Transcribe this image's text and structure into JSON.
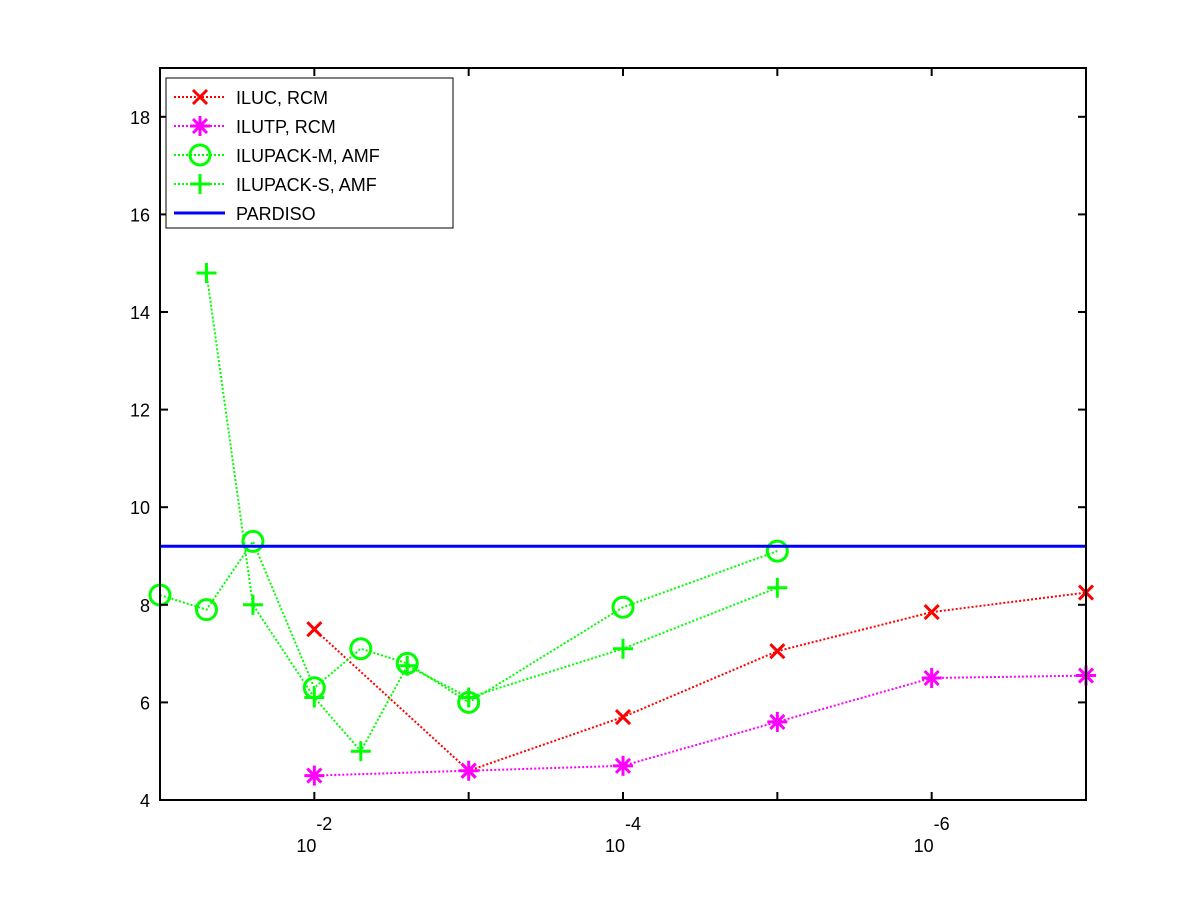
{
  "chart_data": {
    "type": "line",
    "title": "",
    "xlabel": "",
    "ylabel": "",
    "x_scale": "log",
    "x_direction": "decreasing",
    "xlim": [
      0.1,
      1e-07
    ],
    "ylim": [
      4,
      19
    ],
    "grid": false,
    "legend_position": "top-left",
    "x_ticks": [
      {
        "value": 0.01,
        "base": "10",
        "exponent": "-2"
      },
      {
        "value": 0.0001,
        "base": "10",
        "exponent": "-4"
      },
      {
        "value": 1e-06,
        "base": "10",
        "exponent": "-6"
      }
    ],
    "y_ticks": [
      {
        "value": 4,
        "label": "4"
      },
      {
        "value": 6,
        "label": "6"
      },
      {
        "value": 8,
        "label": "8"
      },
      {
        "value": 10,
        "label": "10"
      },
      {
        "value": 12,
        "label": "12"
      },
      {
        "value": 14,
        "label": "14"
      },
      {
        "value": 16,
        "label": "16"
      },
      {
        "value": 18,
        "label": "18"
      }
    ],
    "series": [
      {
        "name": "ILUC, RCM",
        "color": "#ff0000",
        "marker": "x",
        "line_style": "dotted",
        "x": [
          0.01,
          0.001,
          0.0001,
          1e-05,
          1e-06,
          1e-07
        ],
        "y": [
          7.5,
          4.6,
          5.7,
          7.05,
          7.85,
          8.25
        ]
      },
      {
        "name": "ILUTP, RCM",
        "color": "#ff00ff",
        "marker": "asterisk",
        "line_style": "dotted",
        "x": [
          0.01,
          0.001,
          0.0001,
          1e-05,
          1e-06,
          1e-07
        ],
        "y": [
          4.5,
          4.6,
          4.7,
          5.6,
          6.5,
          6.55
        ]
      },
      {
        "name": "ILUPACK-M, AMF",
        "color": "#00ff00",
        "marker": "circle",
        "line_style": "dotted",
        "x": [
          0.1,
          0.05,
          0.025,
          0.01,
          0.005,
          0.0025,
          0.001,
          0.0001,
          1e-05
        ],
        "y": [
          8.2,
          7.9,
          9.3,
          6.3,
          7.1,
          6.8,
          6.0,
          7.95,
          9.1
        ]
      },
      {
        "name": "ILUPACK-S, AMF",
        "color": "#00ff00",
        "marker": "plus",
        "line_style": "dotted",
        "x": [
          0.05,
          0.025,
          0.01,
          0.005,
          0.0025,
          0.001,
          0.0001,
          1e-05
        ],
        "y": [
          14.8,
          8.0,
          6.1,
          5.0,
          6.75,
          6.1,
          7.1,
          8.35
        ]
      },
      {
        "name": "PARDISO",
        "color": "#0000ff",
        "marker": "none",
        "line_style": "solid",
        "x": [
          0.1,
          1e-07
        ],
        "y": [
          9.2,
          9.2
        ]
      }
    ]
  }
}
